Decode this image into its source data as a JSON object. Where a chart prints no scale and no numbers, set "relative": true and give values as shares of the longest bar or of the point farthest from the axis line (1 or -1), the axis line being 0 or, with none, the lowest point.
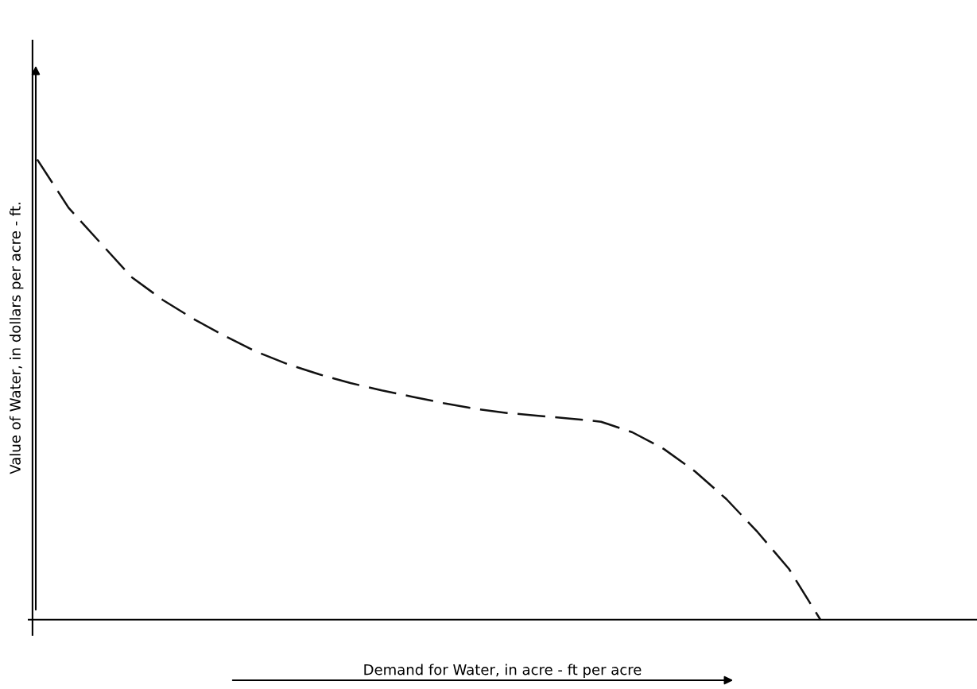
{
  "chart_data": {
    "type": "line",
    "relative": true,
    "xlabel": "Demand for Water, in acre - ft per acre",
    "ylabel": "Value of Water, in dollars per acre - ft.",
    "line_style": "dashed",
    "marker": "none",
    "categories": [
      null,
      null,
      null,
      null,
      null,
      null,
      null,
      null,
      null,
      null,
      null,
      null,
      null,
      null,
      null,
      null,
      null,
      null,
      null,
      null,
      null,
      null,
      null,
      null,
      null,
      null
    ],
    "series": [
      {
        "color": "#111111",
        "values": [
          1.0,
          0.895,
          0.82,
          0.745,
          0.695,
          0.653,
          0.616,
          0.582,
          0.555,
          0.533,
          0.514,
          0.498,
          0.484,
          0.47,
          0.458,
          0.449,
          0.443,
          0.437,
          0.43,
          0.407,
          0.371,
          0.322,
          0.262,
          0.19,
          0.11,
          0.0
        ]
      }
    ]
  }
}
